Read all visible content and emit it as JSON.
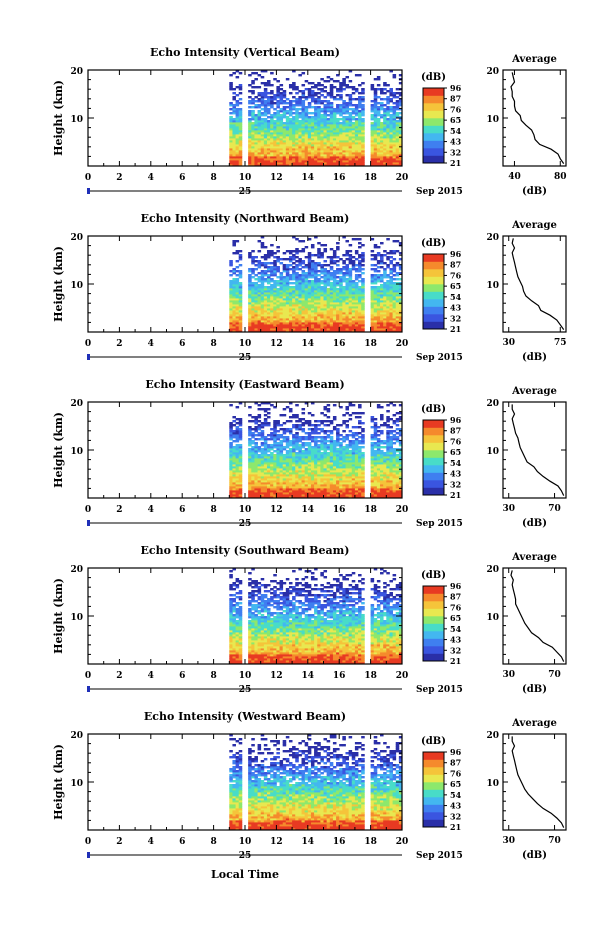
{
  "chart_data": [
    {
      "type": "heatmap",
      "title": "Echo Intensity (Vertical Beam)",
      "ylabel": "Height (km)",
      "xticks": [
        0,
        2,
        4,
        6,
        8,
        10,
        12,
        14,
        16,
        18,
        20
      ],
      "yticks": [
        10,
        20
      ],
      "xlim": [
        0,
        20
      ],
      "ylim": [
        0,
        20
      ],
      "date_day": "25",
      "date_month": "Sep 2015",
      "data_start_hour": 9,
      "gaps_hours": [
        10.0,
        17.8
      ],
      "colorbar": {
        "label": "(dB)",
        "ticks": [
          "96",
          "87",
          "76",
          "65",
          "54",
          "43",
          "32",
          "21"
        ]
      },
      "average": {
        "title": "Average",
        "xlabel": "(dB)",
        "xticks": [
          40,
          80
        ],
        "xlim": [
          30,
          85
        ],
        "yticks": [
          10,
          20
        ],
        "profile": [
          [
            83,
            0.5
          ],
          [
            80,
            1.5
          ],
          [
            78,
            2.5
          ],
          [
            72,
            3.5
          ],
          [
            62,
            4.5
          ],
          [
            58,
            5.5
          ],
          [
            57,
            6.5
          ],
          [
            55,
            7.5
          ],
          [
            50,
            8.5
          ],
          [
            46,
            9.5
          ],
          [
            45,
            10.5
          ],
          [
            41,
            11.5
          ],
          [
            40,
            12.5
          ],
          [
            40,
            13.5
          ],
          [
            38,
            14.5
          ],
          [
            38,
            15.5
          ],
          [
            37,
            16.5
          ],
          [
            40,
            17.5
          ],
          [
            39,
            18.5
          ],
          [
            38,
            19.5
          ]
        ]
      }
    },
    {
      "type": "heatmap",
      "title": "Echo Intensity (Northward Beam)",
      "ylabel": "Height (km)",
      "xticks": [
        0,
        2,
        4,
        6,
        8,
        10,
        12,
        14,
        16,
        18,
        20
      ],
      "yticks": [
        10,
        20
      ],
      "xlim": [
        0,
        20
      ],
      "ylim": [
        0,
        20
      ],
      "date_day": "25",
      "date_month": "Sep 2015",
      "data_start_hour": 9,
      "gaps_hours": [
        10.0,
        17.8
      ],
      "colorbar": {
        "label": "(dB)",
        "ticks": [
          "96",
          "87",
          "76",
          "65",
          "54",
          "43",
          "32",
          "21"
        ]
      },
      "average": {
        "title": "Average",
        "xlabel": "(dB)",
        "xticks": [
          30,
          75
        ],
        "xlim": [
          25,
          80
        ],
        "yticks": [
          10,
          20
        ],
        "profile": [
          [
            78,
            0.5
          ],
          [
            75,
            1.5
          ],
          [
            72,
            2.5
          ],
          [
            66,
            3.5
          ],
          [
            58,
            4.5
          ],
          [
            56,
            5.5
          ],
          [
            50,
            6.5
          ],
          [
            45,
            7.5
          ],
          [
            43,
            8.5
          ],
          [
            42,
            9.5
          ],
          [
            40,
            10.5
          ],
          [
            38,
            11.5
          ],
          [
            37,
            12.5
          ],
          [
            36,
            13.5
          ],
          [
            35,
            14.5
          ],
          [
            34,
            15.5
          ],
          [
            33,
            16.5
          ],
          [
            35,
            17.5
          ],
          [
            33,
            18.5
          ],
          [
            34,
            19.5
          ]
        ]
      }
    },
    {
      "type": "heatmap",
      "title": "Echo Intensity (Eastward Beam)",
      "ylabel": "Height (km)",
      "xticks": [
        0,
        2,
        4,
        6,
        8,
        10,
        12,
        14,
        16,
        18,
        20
      ],
      "yticks": [
        10,
        20
      ],
      "xlim": [
        0,
        20
      ],
      "ylim": [
        0,
        20
      ],
      "date_day": "25",
      "date_month": "Sep 2015",
      "data_start_hour": 9,
      "gaps_hours": [
        10.0,
        17.8
      ],
      "colorbar": {
        "label": "(dB)",
        "ticks": [
          "96",
          "87",
          "76",
          "65",
          "54",
          "43",
          "32",
          "21"
        ]
      },
      "average": {
        "title": "Average",
        "xlabel": "(dB)",
        "xticks": [
          30,
          70
        ],
        "xlim": [
          25,
          80
        ],
        "yticks": [
          10,
          20
        ],
        "profile": [
          [
            78,
            0.5
          ],
          [
            76,
            1.5
          ],
          [
            73,
            2.5
          ],
          [
            66,
            3.5
          ],
          [
            60,
            4.5
          ],
          [
            55,
            5.5
          ],
          [
            52,
            6.5
          ],
          [
            46,
            7.5
          ],
          [
            44,
            8.5
          ],
          [
            42,
            9.5
          ],
          [
            40,
            10.5
          ],
          [
            39,
            11.5
          ],
          [
            38,
            12.5
          ],
          [
            36,
            13.5
          ],
          [
            35,
            14.5
          ],
          [
            34,
            15.5
          ],
          [
            33,
            16.5
          ],
          [
            35,
            17.5
          ],
          [
            33,
            18.5
          ],
          [
            33,
            19.5
          ]
        ]
      }
    },
    {
      "type": "heatmap",
      "title": "Echo Intensity (Southward Beam)",
      "ylabel": "Height (km)",
      "xticks": [
        0,
        2,
        4,
        6,
        8,
        10,
        12,
        14,
        16,
        18,
        20
      ],
      "yticks": [
        10,
        20
      ],
      "xlim": [
        0,
        20
      ],
      "ylim": [
        0,
        20
      ],
      "date_day": "25",
      "date_month": "Sep 2015",
      "data_start_hour": 9,
      "gaps_hours": [
        10.0,
        17.8
      ],
      "colorbar": {
        "label": "(dB)",
        "ticks": [
          "96",
          "87",
          "76",
          "65",
          "54",
          "43",
          "32",
          "21"
        ]
      },
      "average": {
        "title": "Average",
        "xlabel": "(dB)",
        "xticks": [
          30,
          70
        ],
        "xlim": [
          25,
          80
        ],
        "yticks": [
          10,
          20
        ],
        "profile": [
          [
            78,
            0.5
          ],
          [
            76,
            1.5
          ],
          [
            72,
            2.5
          ],
          [
            68,
            3.5
          ],
          [
            60,
            4.5
          ],
          [
            56,
            5.5
          ],
          [
            50,
            6.5
          ],
          [
            47,
            7.5
          ],
          [
            44,
            8.5
          ],
          [
            42,
            9.5
          ],
          [
            40,
            10.5
          ],
          [
            38,
            11.5
          ],
          [
            36,
            12.5
          ],
          [
            36,
            13.5
          ],
          [
            35,
            14.5
          ],
          [
            34,
            15.5
          ],
          [
            33,
            16.5
          ],
          [
            34,
            17.5
          ],
          [
            32,
            18.5
          ],
          [
            33,
            19.5
          ]
        ]
      }
    },
    {
      "type": "heatmap",
      "title": "Echo Intensity (Westward Beam)",
      "ylabel": "Height (km)",
      "xticks": [
        0,
        2,
        4,
        6,
        8,
        10,
        12,
        14,
        16,
        18,
        20
      ],
      "yticks": [
        10,
        20
      ],
      "xlim": [
        0,
        20
      ],
      "ylim": [
        0,
        20
      ],
      "date_day": "25",
      "date_month": "Sep 2015",
      "data_start_hour": 9,
      "gaps_hours": [
        10.0,
        17.8
      ],
      "colorbar": {
        "label": "(dB)",
        "ticks": [
          "96",
          "87",
          "76",
          "65",
          "54",
          "43",
          "32",
          "21"
        ]
      },
      "average": {
        "title": "Average",
        "xlabel": "(dB)",
        "xticks": [
          30,
          70
        ],
        "xlim": [
          25,
          80
        ],
        "yticks": [
          10,
          20
        ],
        "profile": [
          [
            78,
            0.5
          ],
          [
            76,
            1.5
          ],
          [
            72,
            2.5
          ],
          [
            67,
            3.5
          ],
          [
            60,
            4.5
          ],
          [
            55,
            5.5
          ],
          [
            51,
            6.5
          ],
          [
            47,
            7.5
          ],
          [
            44,
            8.5
          ],
          [
            42,
            9.5
          ],
          [
            40,
            10.5
          ],
          [
            38,
            11.5
          ],
          [
            37,
            12.5
          ],
          [
            36,
            13.5
          ],
          [
            35,
            14.5
          ],
          [
            34,
            15.5
          ],
          [
            33,
            16.5
          ],
          [
            35,
            17.5
          ],
          [
            33,
            18.5
          ],
          [
            33,
            19.5
          ]
        ]
      }
    }
  ],
  "footer": {
    "xlabel": "Local Time"
  },
  "colors": {
    "colormap": [
      "#2a2fa8",
      "#3a55e0",
      "#3f7ff0",
      "#43b7f0",
      "#48dcc8",
      "#8de86c",
      "#e8e850",
      "#f5c43a",
      "#f58a2c",
      "#e83a22"
    ],
    "axis": "#000000",
    "time_marker": "#1f2fb8"
  }
}
